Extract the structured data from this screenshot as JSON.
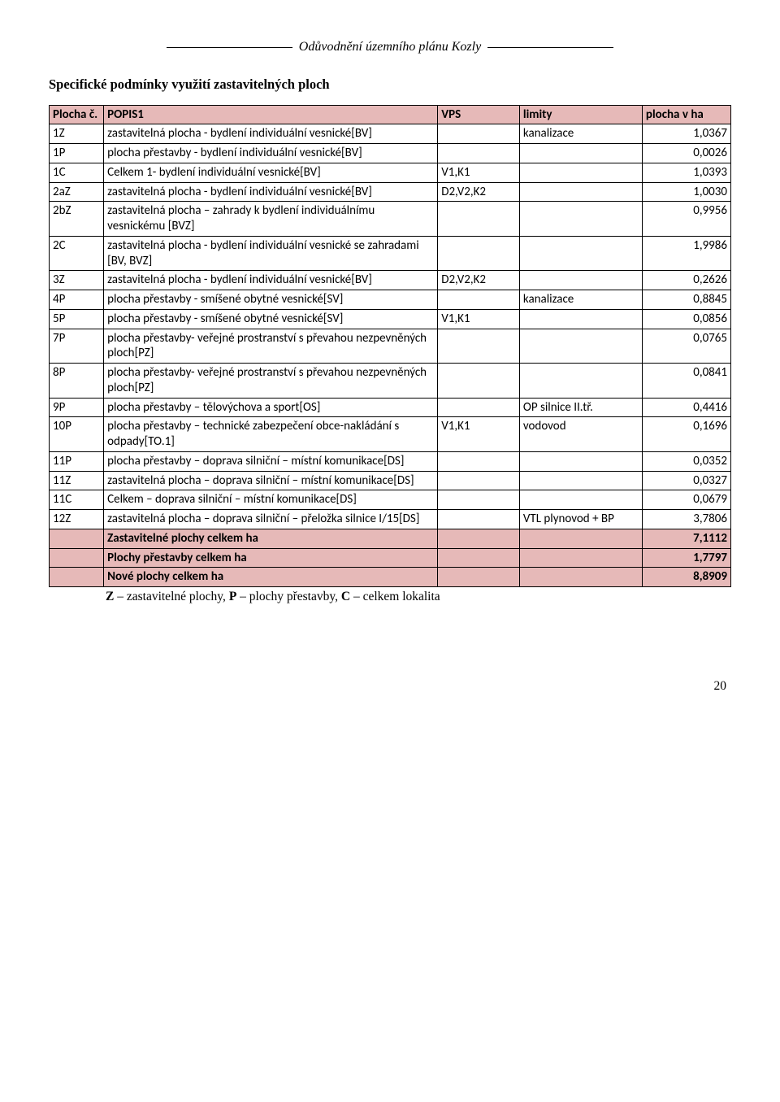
{
  "doc_header": "Odůvodnění územního plánu Kozly",
  "section_heading": "Specifické podmínky využití zastavitelných ploch",
  "table": {
    "headers": {
      "id": "Plocha č.",
      "desc": "POPIS1",
      "vps": "VPS",
      "lim": "limity",
      "area": "plocha v ha"
    },
    "rows": [
      {
        "id": "1Z",
        "desc": "zastavitelná plocha - bydlení individuální vesnické[BV]",
        "vps": "",
        "lim": "kanalizace",
        "area": "1,0367"
      },
      {
        "id": "1P",
        "desc": "plocha přestavby - bydlení individuální vesnické[BV]",
        "vps": "",
        "lim": "",
        "area": "0,0026"
      },
      {
        "id": "1C",
        "desc": "Celkem 1- bydlení individuální vesnické[BV]",
        "vps": "V1,K1",
        "lim": "",
        "area": "1,0393"
      },
      {
        "id": "2aZ",
        "desc": "zastavitelná plocha - bydlení individuální vesnické[BV]",
        "vps": "D2,V2,K2",
        "lim": "",
        "area": "1,0030"
      },
      {
        "id": "2bZ",
        "desc": "zastavitelná plocha – zahrady k bydlení individuálnímu vesnickému [BVZ]",
        "vps": "",
        "lim": "",
        "area": "0,9956"
      },
      {
        "id": "2C",
        "desc": "zastavitelná plocha - bydlení individuální vesnické se zahradami [BV, BVZ]",
        "vps": "",
        "lim": "",
        "area": "1,9986"
      },
      {
        "id": "3Z",
        "desc": "zastavitelná plocha - bydlení individuální vesnické[BV]",
        "vps": "D2,V2,K2",
        "lim": "",
        "area": "0,2626"
      },
      {
        "id": "4P",
        "desc": "plocha přestavby - smíšené obytné vesnické[SV]",
        "vps": "",
        "lim": "kanalizace",
        "area": "0,8845"
      },
      {
        "id": "5P",
        "desc": "plocha přestavby - smíšené obytné vesnické[SV]",
        "vps": "V1,K1",
        "lim": "",
        "area": "0,0856"
      },
      {
        "id": "7P",
        "desc": "plocha přestavby- veřejné prostranství s převahou nezpevněných ploch[PZ]",
        "vps": "",
        "lim": "",
        "area": "0,0765"
      },
      {
        "id": "8P",
        "desc": "plocha přestavby- veřejné prostranství s převahou nezpevněných ploch[PZ]",
        "vps": "",
        "lim": "",
        "area": "0,0841"
      },
      {
        "id": "9P",
        "desc": "plocha přestavby – tělovýchova a sport[OS]",
        "vps": "",
        "lim": "OP silnice II.tř.",
        "area": "0,4416"
      },
      {
        "id": "10P",
        "desc": "plocha přestavby – technické zabezpečení obce-nakládání s odpady[TO.1]",
        "vps": "V1,K1",
        "lim": "vodovod",
        "area": "0,1696"
      },
      {
        "id": "11P",
        "desc": "plocha přestavby – doprava silniční – místní komunikace[DS]",
        "vps": "",
        "lim": "",
        "area": "0,0352"
      },
      {
        "id": "11Z",
        "desc": "zastavitelná plocha – doprava silniční – místní komunikace[DS]",
        "vps": "",
        "lim": "",
        "area": "0,0327"
      },
      {
        "id": "11C",
        "desc": "Celkem – doprava silniční – místní komunikace[DS]",
        "vps": "",
        "lim": "",
        "area": "0,0679"
      },
      {
        "id": "12Z",
        "desc": "zastavitelná plocha – doprava silniční – přeložka silnice I/15[DS]",
        "vps": "",
        "lim": "VTL plynovod + BP",
        "area": "3,7806"
      }
    ],
    "summary": [
      {
        "desc": "Zastavitelné plochy celkem ha",
        "area": "7,1112"
      },
      {
        "desc": "Plochy přestavby celkem ha",
        "area": "1,7797"
      },
      {
        "desc": "Nové plochy celkem ha",
        "area": "8,8909"
      }
    ]
  },
  "legend": {
    "z_key": "Z",
    "z_txt": " – zastavitelné plochy, ",
    "p_key": "P",
    "p_txt": " – plochy přestavby, ",
    "c_key": "C",
    "c_txt": " – celkem lokalita"
  },
  "page_number": "20"
}
